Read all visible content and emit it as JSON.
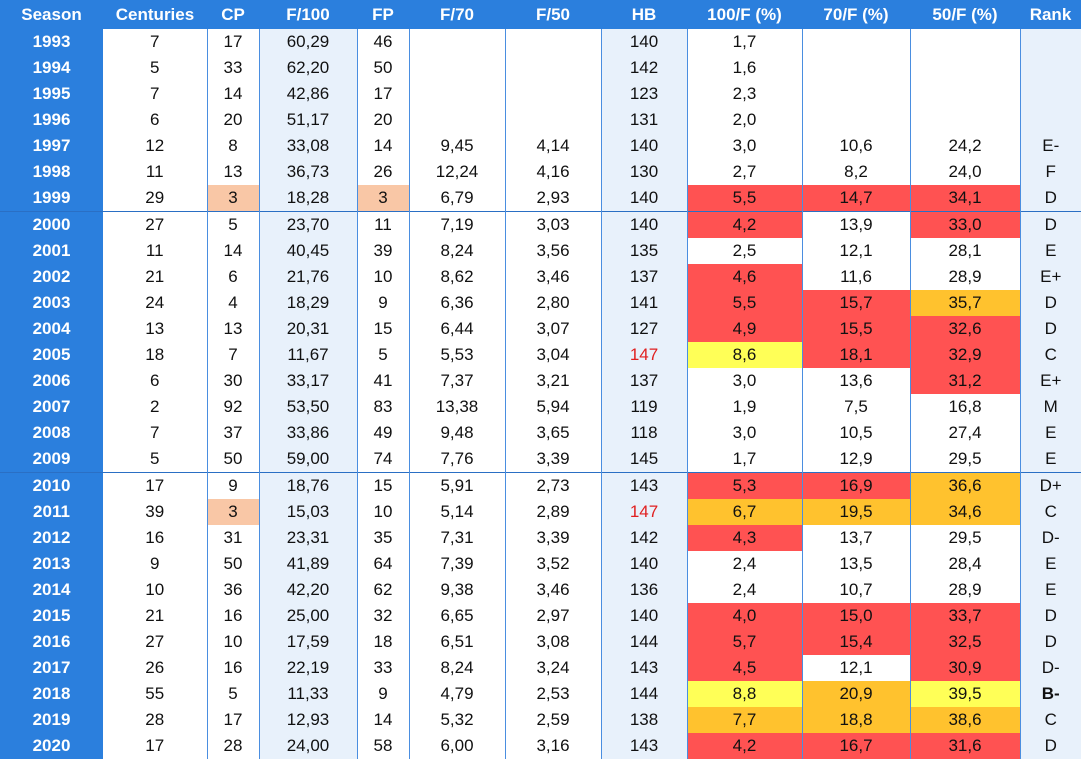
{
  "headers": [
    "Season",
    "Centuries",
    "CP",
    "F/100",
    "FP",
    "F/70",
    "F/50",
    "HB",
    "100/F (%)",
    "70/F (%)",
    "50/F (%)",
    "Rank"
  ],
  "rows": [
    {
      "season": "1993",
      "centuries": "7",
      "cp": "17",
      "f100": "60,29",
      "fp": "46",
      "f70": "",
      "f50": "",
      "hb": "140",
      "p100": "1,7",
      "p70": "",
      "p50": "",
      "rank": ""
    },
    {
      "season": "1994",
      "centuries": "5",
      "cp": "33",
      "f100": "62,20",
      "fp": "50",
      "f70": "",
      "f50": "",
      "hb": "142",
      "p100": "1,6",
      "p70": "",
      "p50": "",
      "rank": ""
    },
    {
      "season": "1995",
      "centuries": "7",
      "cp": "14",
      "f100": "42,86",
      "fp": "17",
      "f70": "",
      "f50": "",
      "hb": "123",
      "p100": "2,3",
      "p70": "",
      "p50": "",
      "rank": ""
    },
    {
      "season": "1996",
      "centuries": "6",
      "cp": "20",
      "f100": "51,17",
      "fp": "20",
      "f70": "",
      "f50": "",
      "hb": "131",
      "p100": "2,0",
      "p70": "",
      "p50": "",
      "rank": ""
    },
    {
      "season": "1997",
      "centuries": "12",
      "cp": "8",
      "f100": "33,08",
      "fp": "14",
      "f70": "9,45",
      "f50": "4,14",
      "hb": "140",
      "p100": "3,0",
      "p70": "10,6",
      "p50": "24,2",
      "rank": "E-"
    },
    {
      "season": "1998",
      "centuries": "11",
      "cp": "13",
      "f100": "36,73",
      "fp": "26",
      "f70": "12,24",
      "f50": "4,16",
      "hb": "130",
      "p100": "2,7",
      "p70": "8,2",
      "p50": "24,0",
      "rank": "F"
    },
    {
      "season": "1999",
      "centuries": "29",
      "cp": "3",
      "f100": "18,28",
      "fp": "3",
      "f70": "6,79",
      "f50": "2,93",
      "hb": "140",
      "p100": "5,5",
      "p70": "14,7",
      "p50": "34,1",
      "rank": "D"
    },
    {
      "season": "2000",
      "centuries": "27",
      "cp": "5",
      "f100": "23,70",
      "fp": "11",
      "f70": "7,19",
      "f50": "3,03",
      "hb": "140",
      "p100": "4,2",
      "p70": "13,9",
      "p50": "33,0",
      "rank": "D"
    },
    {
      "season": "2001",
      "centuries": "11",
      "cp": "14",
      "f100": "40,45",
      "fp": "39",
      "f70": "8,24",
      "f50": "3,56",
      "hb": "135",
      "p100": "2,5",
      "p70": "12,1",
      "p50": "28,1",
      "rank": "E"
    },
    {
      "season": "2002",
      "centuries": "21",
      "cp": "6",
      "f100": "21,76",
      "fp": "10",
      "f70": "8,62",
      "f50": "3,46",
      "hb": "137",
      "p100": "4,6",
      "p70": "11,6",
      "p50": "28,9",
      "rank": "E+"
    },
    {
      "season": "2003",
      "centuries": "24",
      "cp": "4",
      "f100": "18,29",
      "fp": "9",
      "f70": "6,36",
      "f50": "2,80",
      "hb": "141",
      "p100": "5,5",
      "p70": "15,7",
      "p50": "35,7",
      "rank": "D"
    },
    {
      "season": "2004",
      "centuries": "13",
      "cp": "13",
      "f100": "20,31",
      "fp": "15",
      "f70": "6,44",
      "f50": "3,07",
      "hb": "127",
      "p100": "4,9",
      "p70": "15,5",
      "p50": "32,6",
      "rank": "D"
    },
    {
      "season": "2005",
      "centuries": "18",
      "cp": "7",
      "f100": "11,67",
      "fp": "5",
      "f70": "5,53",
      "f50": "3,04",
      "hb": "147",
      "p100": "8,6",
      "p70": "18,1",
      "p50": "32,9",
      "rank": "C"
    },
    {
      "season": "2006",
      "centuries": "6",
      "cp": "30",
      "f100": "33,17",
      "fp": "41",
      "f70": "7,37",
      "f50": "3,21",
      "hb": "137",
      "p100": "3,0",
      "p70": "13,6",
      "p50": "31,2",
      "rank": "E+"
    },
    {
      "season": "2007",
      "centuries": "2",
      "cp": "92",
      "f100": "53,50",
      "fp": "83",
      "f70": "13,38",
      "f50": "5,94",
      "hb": "119",
      "p100": "1,9",
      "p70": "7,5",
      "p50": "16,8",
      "rank": "M"
    },
    {
      "season": "2008",
      "centuries": "7",
      "cp": "37",
      "f100": "33,86",
      "fp": "49",
      "f70": "9,48",
      "f50": "3,65",
      "hb": "118",
      "p100": "3,0",
      "p70": "10,5",
      "p50": "27,4",
      "rank": "E"
    },
    {
      "season": "2009",
      "centuries": "5",
      "cp": "50",
      "f100": "59,00",
      "fp": "74",
      "f70": "7,76",
      "f50": "3,39",
      "hb": "145",
      "p100": "1,7",
      "p70": "12,9",
      "p50": "29,5",
      "rank": "E"
    },
    {
      "season": "2010",
      "centuries": "17",
      "cp": "9",
      "f100": "18,76",
      "fp": "15",
      "f70": "5,91",
      "f50": "2,73",
      "hb": "143",
      "p100": "5,3",
      "p70": "16,9",
      "p50": "36,6",
      "rank": "D+"
    },
    {
      "season": "2011",
      "centuries": "39",
      "cp": "3",
      "f100": "15,03",
      "fp": "10",
      "f70": "5,14",
      "f50": "2,89",
      "hb": "147",
      "p100": "6,7",
      "p70": "19,5",
      "p50": "34,6",
      "rank": "C"
    },
    {
      "season": "2012",
      "centuries": "16",
      "cp": "31",
      "f100": "23,31",
      "fp": "35",
      "f70": "7,31",
      "f50": "3,39",
      "hb": "142",
      "p100": "4,3",
      "p70": "13,7",
      "p50": "29,5",
      "rank": "D-"
    },
    {
      "season": "2013",
      "centuries": "9",
      "cp": "50",
      "f100": "41,89",
      "fp": "64",
      "f70": "7,39",
      "f50": "3,52",
      "hb": "140",
      "p100": "2,4",
      "p70": "13,5",
      "p50": "28,4",
      "rank": "E"
    },
    {
      "season": "2014",
      "centuries": "10",
      "cp": "36",
      "f100": "42,20",
      "fp": "62",
      "f70": "9,38",
      "f50": "3,46",
      "hb": "136",
      "p100": "2,4",
      "p70": "10,7",
      "p50": "28,9",
      "rank": "E"
    },
    {
      "season": "2015",
      "centuries": "21",
      "cp": "16",
      "f100": "25,00",
      "fp": "32",
      "f70": "6,65",
      "f50": "2,97",
      "hb": "140",
      "p100": "4,0",
      "p70": "15,0",
      "p50": "33,7",
      "rank": "D"
    },
    {
      "season": "2016",
      "centuries": "27",
      "cp": "10",
      "f100": "17,59",
      "fp": "18",
      "f70": "6,51",
      "f50": "3,08",
      "hb": "144",
      "p100": "5,7",
      "p70": "15,4",
      "p50": "32,5",
      "rank": "D"
    },
    {
      "season": "2017",
      "centuries": "26",
      "cp": "16",
      "f100": "22,19",
      "fp": "33",
      "f70": "8,24",
      "f50": "3,24",
      "hb": "143",
      "p100": "4,5",
      "p70": "12,1",
      "p50": "30,9",
      "rank": "D-"
    },
    {
      "season": "2018",
      "centuries": "55",
      "cp": "5",
      "f100": "11,33",
      "fp": "9",
      "f70": "4,79",
      "f50": "2,53",
      "hb": "144",
      "p100": "8,8",
      "p70": "20,9",
      "p50": "39,5",
      "rank": "B-"
    },
    {
      "season": "2019",
      "centuries": "28",
      "cp": "17",
      "f100": "12,93",
      "fp": "14",
      "f70": "5,32",
      "f50": "2,59",
      "hb": "138",
      "p100": "7,7",
      "p70": "18,8",
      "p50": "38,6",
      "rank": "C"
    },
    {
      "season": "2020",
      "centuries": "17",
      "cp": "28",
      "f100": "24,00",
      "fp": "58",
      "f70": "6,00",
      "f50": "3,16",
      "hb": "143",
      "p100": "4,2",
      "p70": "16,7",
      "p50": "31,6",
      "rank": "D"
    }
  ],
  "colors": {
    "header_bg": "#2b7fdd",
    "highlight_red": "#ff5252",
    "highlight_orange": "#ffc22e",
    "highlight_yellow": "#ffff57",
    "highlight_peach": "#f9c7a6",
    "text_red": "#e02020",
    "light_blue": "#e8f1fb"
  },
  "highlights": {
    "1999": {
      "cp": "peach",
      "fp": "peach",
      "p100": "red",
      "p70": "red",
      "p50": "red"
    },
    "2000": {
      "p100": "red",
      "p50": "red"
    },
    "2002": {
      "p100": "red"
    },
    "2003": {
      "p100": "red",
      "p70": "red",
      "p50": "orange"
    },
    "2004": {
      "p100": "red",
      "p70": "red",
      "p50": "red"
    },
    "2005": {
      "hb_text": "red",
      "p100": "yellow",
      "p70": "red",
      "p50": "red"
    },
    "2006": {
      "p50": "red"
    },
    "2010": {
      "p100": "red",
      "p70": "red",
      "p50": "orange"
    },
    "2011": {
      "cp": "peach",
      "hb_text": "red",
      "p100": "orange",
      "p70": "orange",
      "p50": "orange"
    },
    "2012": {
      "p100": "red"
    },
    "2015": {
      "p100": "red",
      "p70": "red",
      "p50": "red"
    },
    "2016": {
      "p100": "red",
      "p70": "red",
      "p50": "red"
    },
    "2017": {
      "p100": "red",
      "p50": "red"
    },
    "2018": {
      "p100": "yellow",
      "p70": "orange",
      "p50": "yellow",
      "rank_bold": "true"
    },
    "2019": {
      "p100": "orange",
      "p70": "orange",
      "p50": "orange"
    },
    "2020": {
      "p100": "red",
      "p70": "red",
      "p50": "red"
    }
  }
}
